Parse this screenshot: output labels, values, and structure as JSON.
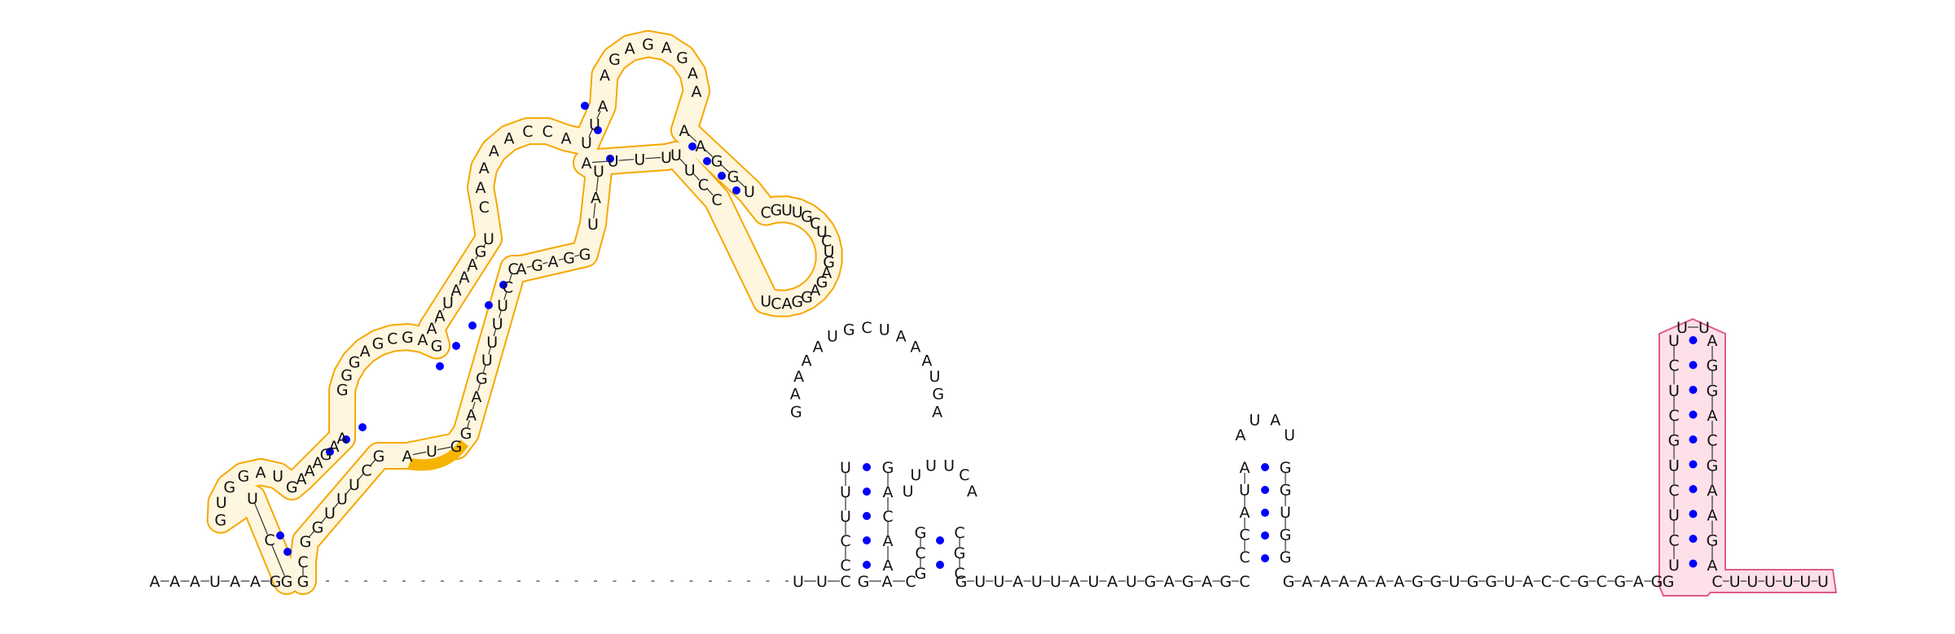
{
  "colors": {
    "background": "#ffffff",
    "base_pair_dot": "#0000ff",
    "nucleotide_text": "#111111",
    "backbone": "#333333",
    "highlight_orange_stroke": "#f5a800",
    "highlight_orange_fill": "#fff6df",
    "highlight_orange_solid": "#f5b400",
    "highlight_pink_stroke": "#e05a86",
    "highlight_pink_fill": "#fde0e8"
  },
  "sequences": {
    "five_prime_tail": "AAAUAAG",
    "spacer_gap_count": 25,
    "hp2_lead": "UUC",
    "hp2_stem_left": "CCUUU",
    "hp2_loop": "GAAAAUGCUAAAUGA",
    "hp2_stem_right": "GACAA",
    "hp3_stem_left": "GCG",
    "hp3_loop": "UUUUCA",
    "hp3_stem_right": "CGC",
    "linker_a": "GUUAUUAUAUGAGAGC",
    "hp4_stem_left": "CCAUA",
    "hp4_loop": "AUAU",
    "hp4_stem_right": "GGUGG",
    "linker_b": "GAAAAAAGGUGGUACCGCGAG",
    "pink_stem_left": "UCUCUGCUCU",
    "pink_loop": "UU",
    "pink_stem_right": "AGGACGAAGA",
    "three_prime_tail": "CUUUUUU",
    "orange_domain": "GCUGCAUAGAAAGAGGACAUCACGAAAAACUCAACCAUUAUGAGAAAGAGGACUCGUUCCUGGAAUUAUGGAGGAGAUCUGAUGUCGAUGUAC",
    "orange_solid_segment": "AUG"
  }
}
